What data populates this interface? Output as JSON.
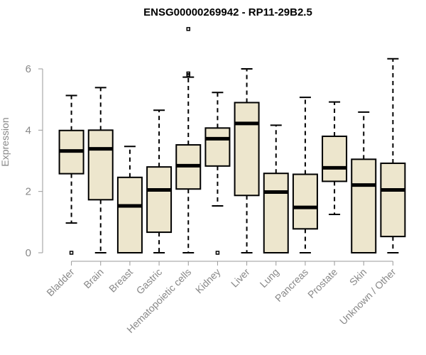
{
  "chart_data": {
    "type": "box",
    "title": "ENSG00000269942 - RP11-29B2.5",
    "ylabel": "Expression",
    "xlabel": "",
    "ylim": [
      0,
      7.5
    ],
    "yticks": [
      0,
      2,
      4,
      6
    ],
    "grid": false,
    "colors": {
      "box_fill": "#ede6cd",
      "stroke": "#000000",
      "axis": "#999999"
    },
    "categories": [
      "Bladder",
      "Brain",
      "Breast",
      "Gastric",
      "Hematopoietic cells",
      "Kidney",
      "Liver",
      "Lung",
      "Pancreas",
      "Prostate",
      "Skin",
      "Unknown / Other"
    ],
    "boxes": [
      {
        "whislo": 0.97,
        "q1": 2.58,
        "med": 3.32,
        "q3": 3.99,
        "whishi": 5.13,
        "fliers": [
          0.0
        ]
      },
      {
        "whislo": 0.0,
        "q1": 1.73,
        "med": 3.39,
        "q3": 4.0,
        "whishi": 5.39,
        "fliers": []
      },
      {
        "whislo": 0.0,
        "q1": 0.0,
        "med": 1.53,
        "q3": 2.46,
        "whishi": 3.47,
        "fliers": []
      },
      {
        "whislo": 0.0,
        "q1": 0.67,
        "med": 2.05,
        "q3": 2.8,
        "whishi": 4.65,
        "fliers": []
      },
      {
        "whislo": 0.0,
        "q1": 2.08,
        "med": 2.84,
        "q3": 3.52,
        "whishi": 5.73,
        "fliers": [
          5.8,
          5.85,
          7.3
        ]
      },
      {
        "whislo": 1.53,
        "q1": 2.83,
        "med": 3.72,
        "q3": 4.07,
        "whishi": 5.23,
        "fliers": [
          0.0
        ]
      },
      {
        "whislo": 0.0,
        "q1": 1.87,
        "med": 4.22,
        "q3": 4.9,
        "whishi": 6.0,
        "fliers": []
      },
      {
        "whislo": 0.0,
        "q1": 0.0,
        "med": 1.98,
        "q3": 2.59,
        "whishi": 4.16,
        "fliers": []
      },
      {
        "whislo": 0.0,
        "q1": 0.78,
        "med": 1.48,
        "q3": 2.56,
        "whishi": 5.07,
        "fliers": []
      },
      {
        "whislo": 1.25,
        "q1": 2.33,
        "med": 2.77,
        "q3": 3.8,
        "whishi": 4.92,
        "fliers": []
      },
      {
        "whislo": 0.0,
        "q1": 0.0,
        "med": 2.21,
        "q3": 3.05,
        "whishi": 4.59,
        "fliers": []
      },
      {
        "whislo": 0.0,
        "q1": 0.53,
        "med": 2.05,
        "q3": 2.92,
        "whishi": 6.33,
        "fliers": []
      }
    ]
  }
}
